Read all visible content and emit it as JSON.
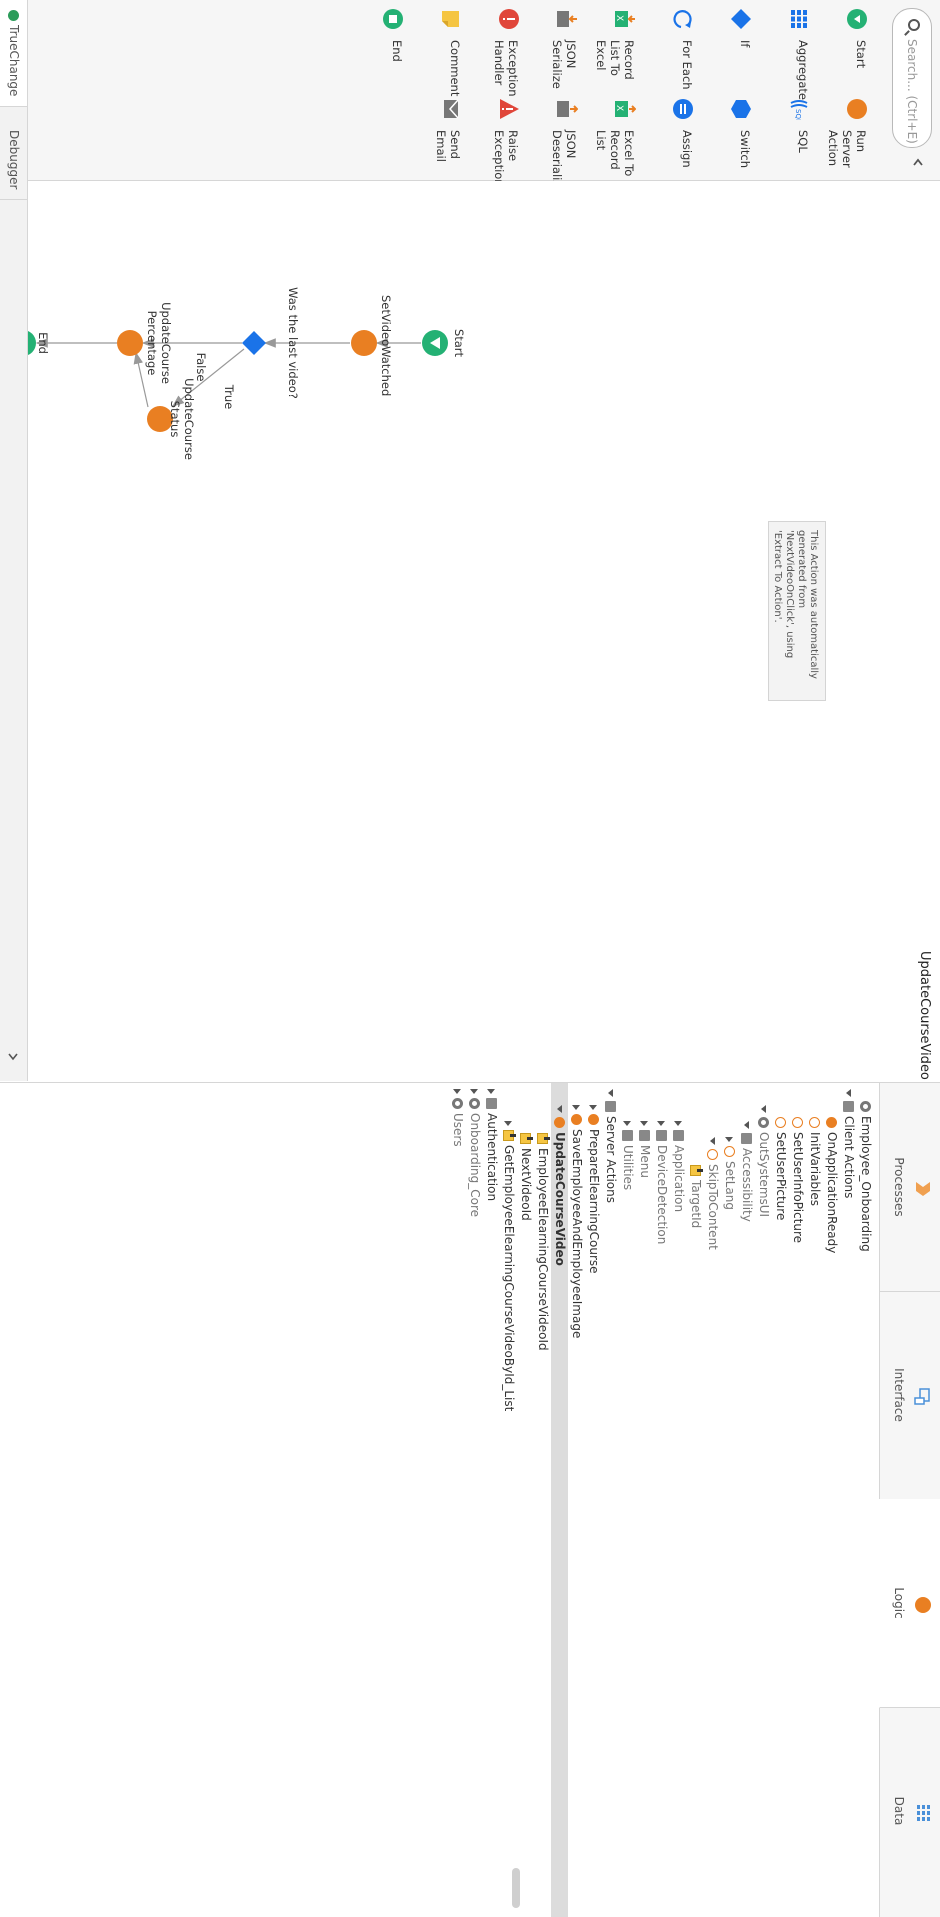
{
  "toolbox": {
    "search_placeholder": "Search... (Ctrl+E)",
    "tools": [
      {
        "label": "Start",
        "icon": "start-icon",
        "color": "#24b174"
      },
      {
        "label": "Run Server Action",
        "icon": "server-action-icon",
        "color": "#e97f22"
      },
      {
        "label": "Aggregate",
        "icon": "aggregate-icon",
        "color": "#1a73e8"
      },
      {
        "label": "SQL",
        "icon": "sql-icon",
        "color": "#1a73e8"
      },
      {
        "label": "If",
        "icon": "if-icon",
        "color": "#1a73e8"
      },
      {
        "label": "Switch",
        "icon": "switch-icon",
        "color": "#1a73e8"
      },
      {
        "label": "For Each",
        "icon": "for-each-icon",
        "color": "#1a73e8"
      },
      {
        "label": "Assign",
        "icon": "assign-icon",
        "color": "#1a73e8"
      },
      {
        "label": "Record List To Excel",
        "icon": "record-list-to-excel-icon",
        "color": "#24b174"
      },
      {
        "label": "Excel To Record List",
        "icon": "excel-to-record-list-icon",
        "color": "#24b174"
      },
      {
        "label": "JSON Serialize",
        "icon": "json-serialize-icon",
        "color": "#777777"
      },
      {
        "label": "JSON Deserialize",
        "icon": "json-deserialize-icon",
        "color": "#777777"
      },
      {
        "label": "Exception Handler",
        "icon": "exception-handler-icon",
        "color": "#e0463a"
      },
      {
        "label": "Raise Exception",
        "icon": "raise-exception-icon",
        "color": "#e0463a"
      },
      {
        "label": "Comment",
        "icon": "comment-icon",
        "color": "#f5c542"
      },
      {
        "label": "Send Email",
        "icon": "send-email-icon",
        "color": "#777777"
      },
      {
        "label": "End",
        "icon": "end-icon",
        "color": "#24b174"
      }
    ]
  },
  "canvas": {
    "action_title": "UpdateCourseVideo",
    "comment": "This Action was automatically generated from 'NextVideoOnClick', using 'Extract To Action'.",
    "nodes": {
      "start": "Start",
      "set_video": "SetVideoWatched",
      "if_label": "Was the last video?",
      "update_status": "UpdateCourse Status",
      "update_pct": "UpdateCourse Percentage",
      "end": "End"
    },
    "edges": {
      "true_label": "True",
      "false_label": "False"
    }
  },
  "bottom_tabs": {
    "truechange": "TrueChange",
    "debugger": "Debugger"
  },
  "panel": {
    "tabs": [
      {
        "label": "Processes",
        "icon": "processes-icon"
      },
      {
        "label": "Interface",
        "icon": "interface-icon"
      },
      {
        "label": "Logic",
        "icon": "logic-icon"
      },
      {
        "label": "Data",
        "icon": "data-icon"
      }
    ],
    "active_tab": "Logic",
    "tree": [
      {
        "label": "Employee_Onboarding",
        "icon": "module",
        "depth": 0,
        "expand": "none"
      },
      {
        "label": "Client Actions",
        "icon": "folder",
        "depth": 0,
        "expand": "down"
      },
      {
        "label": "OnApplicationReady",
        "icon": "event",
        "depth": 1,
        "expand": "none"
      },
      {
        "label": "InitVariables",
        "icon": "action-outline",
        "depth": 1,
        "expand": "none"
      },
      {
        "label": "SetUserInfoPicture",
        "icon": "action-outline",
        "depth": 1,
        "expand": "none"
      },
      {
        "label": "SetUserPicture",
        "icon": "action-outline",
        "depth": 1,
        "expand": "none"
      },
      {
        "label": "OutSystemsUI",
        "icon": "module",
        "depth": 1,
        "expand": "down",
        "muted": true
      },
      {
        "label": "Accessibility",
        "icon": "folder",
        "depth": 2,
        "expand": "down",
        "muted": true
      },
      {
        "label": "SetLang",
        "icon": "action-outline",
        "depth": 3,
        "expand": "right",
        "muted": true
      },
      {
        "label": "SkipToContent",
        "icon": "action-outline",
        "depth": 3,
        "expand": "down",
        "muted": true
      },
      {
        "label": "TargetId",
        "icon": "parameter",
        "depth": 4,
        "expand": "none",
        "muted": true
      },
      {
        "label": "Application",
        "icon": "folder",
        "depth": 2,
        "expand": "right",
        "muted": true
      },
      {
        "label": "DeviceDetection",
        "icon": "folder",
        "depth": 2,
        "expand": "right",
        "muted": true
      },
      {
        "label": "Menu",
        "icon": "folder",
        "depth": 2,
        "expand": "right",
        "muted": true
      },
      {
        "label": "Utilities",
        "icon": "folder",
        "depth": 2,
        "expand": "right",
        "muted": true
      },
      {
        "label": "Server Actions",
        "icon": "folder",
        "depth": 0,
        "expand": "down"
      },
      {
        "label": "PrepareElearningCourse",
        "icon": "action",
        "depth": 1,
        "expand": "right"
      },
      {
        "label": "SaveEmployeeAndEmployeeImage",
        "icon": "action",
        "depth": 1,
        "expand": "right"
      },
      {
        "label": "UpdateCourseVideo",
        "icon": "action",
        "depth": 1,
        "expand": "down",
        "selected": true
      },
      {
        "label": "EmployeeElearningCourseVideoId",
        "icon": "parameter",
        "depth": 2,
        "expand": "none"
      },
      {
        "label": "NextVideoId",
        "icon": "parameter",
        "depth": 2,
        "expand": "none"
      },
      {
        "label": "GetEmployeeElearningCourseVideoById_List",
        "icon": "parameter",
        "depth": 2,
        "expand": "right"
      },
      {
        "label": "Authentication",
        "icon": "folder",
        "depth": 0,
        "expand": "right"
      },
      {
        "label": "Onboarding_Core",
        "icon": "module",
        "depth": 0,
        "expand": "right",
        "muted": true
      },
      {
        "label": "Users",
        "icon": "module",
        "depth": 0,
        "expand": "right",
        "muted": true
      }
    ]
  }
}
